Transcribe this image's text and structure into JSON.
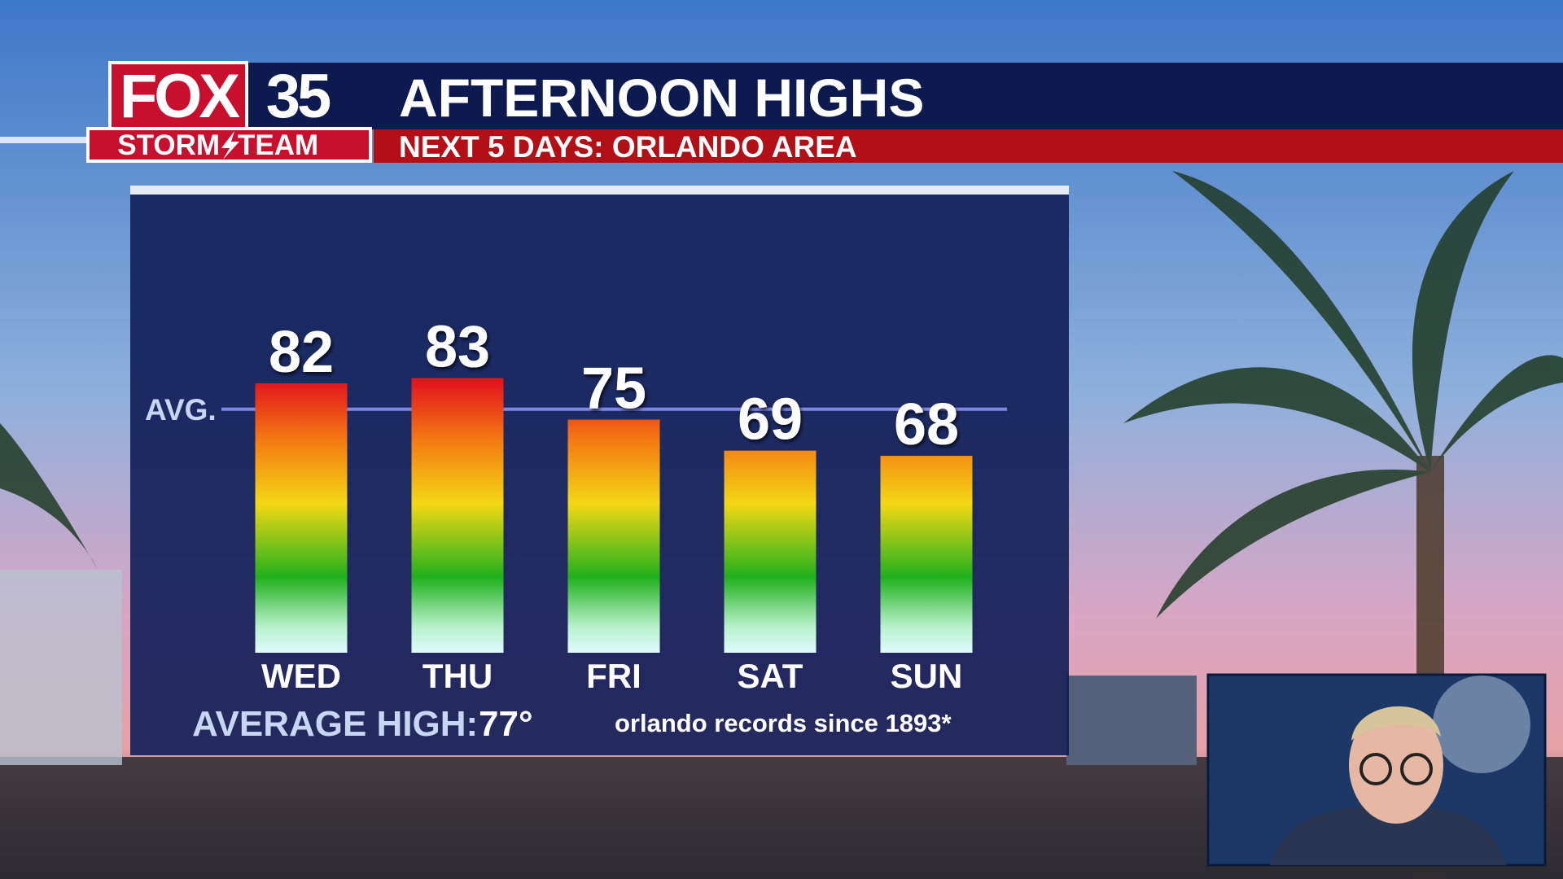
{
  "brand": {
    "name": "FOX",
    "number": "35",
    "team_left": "STORM",
    "team_right": "TEAM"
  },
  "chart_data": {
    "type": "bar",
    "title": "AFTERNOON HIGHS",
    "subtitle": "NEXT 5 DAYS: ORLANDO AREA",
    "categories": [
      "WED",
      "THU",
      "FRI",
      "SAT",
      "SUN"
    ],
    "values": [
      82,
      83,
      75,
      69,
      68
    ],
    "ylim": [
      30,
      90
    ],
    "average_line": {
      "label": "AVG.",
      "value": 77
    },
    "average_high": {
      "label": "AVERAGE HIGH:",
      "value_label": "77°"
    },
    "footnote": "orlando records since 1893*"
  }
}
